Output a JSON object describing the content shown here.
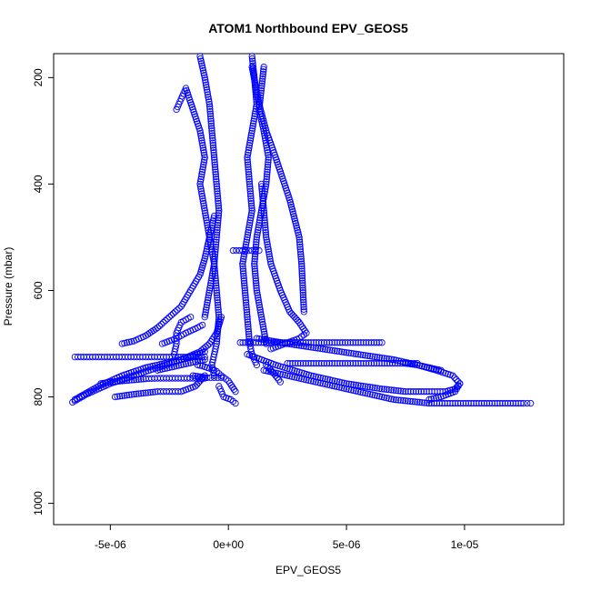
{
  "chart_data": {
    "type": "scatter",
    "title": "ATOM1 Northbound EPV_GEOS5",
    "xlabel": "EPV_GEOS5",
    "ylabel": "Pressure (mbar)",
    "xlim": [
      -7.4e-06,
      1.42e-05
    ],
    "ylim": [
      1040,
      155
    ],
    "y_reversed": true,
    "x_ticks": [
      -5e-06,
      0,
      5e-06,
      1e-05
    ],
    "x_tick_labels": [
      "-5e-06",
      "0e+00",
      "5e-06",
      "1e-05"
    ],
    "y_ticks": [
      200,
      400,
      600,
      800,
      1000
    ],
    "y_tick_labels": [
      "200",
      "400",
      "600",
      "800",
      "1000"
    ],
    "marker": "open-circle",
    "color": "#0000ff",
    "grid": false,
    "legend": "none",
    "series": [
      {
        "x": [
          -1.2e-06,
          -1e-06,
          -8e-07,
          -7e-07,
          -6e-07,
          -5e-07,
          -4e-07,
          -5e-07,
          -6e-07,
          -5e-07,
          -4e-07,
          -5e-07,
          -6e-07,
          -7e-07,
          -6e-07
        ],
        "y": [
          160,
          200,
          250,
          300,
          350,
          400,
          450,
          500,
          550,
          600,
          650,
          700,
          720,
          740,
          760
        ]
      },
      {
        "x": [
          1e-06,
          1.1e-06,
          1.2e-06,
          1e-06,
          8e-07,
          9e-07,
          1e-06,
          8e-07,
          6e-07,
          7e-07,
          8e-07,
          9e-07,
          1e-06,
          1.2e-06
        ],
        "y": [
          160,
          200,
          250,
          300,
          350,
          400,
          450,
          500,
          550,
          600,
          650,
          700,
          720,
          740
        ]
      },
      {
        "x": [
          -2.2e-06,
          -2e-06,
          -1.8e-06,
          -1.5e-06,
          -1.2e-06,
          -1e-06,
          -1.2e-06,
          -1e-06,
          -8e-07,
          -6e-07,
          -8e-07,
          -1e-06
        ],
        "y": [
          260,
          240,
          220,
          260,
          300,
          350,
          400,
          450,
          500,
          550,
          600,
          650
        ]
      },
      {
        "x": [
          1.5e-06,
          1.4e-06,
          1.3e-06,
          1.5e-06,
          1.7e-06,
          1.6e-06,
          1.4e-06,
          1.2e-06,
          1.1e-06,
          1.2e-06,
          1.4e-06,
          1.6e-06
        ],
        "y": [
          180,
          220,
          260,
          300,
          350,
          400,
          450,
          500,
          550,
          600,
          650,
          700
        ]
      },
      {
        "x": [
          -4.5e-06,
          -4e-06,
          -3.5e-06,
          -3e-06,
          -2.5e-06,
          -2e-06,
          -1.6e-06,
          -1.2e-06,
          -1e-06,
          -8e-07,
          -6e-07
        ],
        "y": [
          700,
          695,
          685,
          670,
          650,
          630,
          600,
          570,
          540,
          500,
          460
        ]
      },
      {
        "x": [
          -6.6e-06,
          -6e-06,
          -5e-06,
          -4e-06,
          -3e-06,
          -2e-06,
          -1.2e-06,
          -8e-07,
          -5e-07,
          -3e-07
        ],
        "y": [
          810,
          795,
          775,
          760,
          745,
          730,
          715,
          700,
          680,
          650
        ]
      },
      {
        "x": [
          -6.5e-06,
          -5.5e-06,
          -4.5e-06,
          -3.5e-06,
          -2.5e-06,
          -1.6e-06,
          -1e-06
        ],
        "y": [
          805,
          780,
          760,
          745,
          735,
          725,
          715
        ]
      },
      {
        "x": [
          -4.8e-06,
          -4e-06,
          -3e-06,
          -2.5e-06,
          -2e-06,
          -1.4e-06,
          -1e-06
        ],
        "y": [
          800,
          795,
          790,
          790,
          790,
          780,
          760
        ]
      },
      {
        "x": [
          -6.5e-06,
          -6e-06,
          -5.5e-06,
          -5e-06,
          -4.5e-06,
          -4e-06,
          -3.5e-06,
          -3e-06,
          -2.5e-06,
          -2e-06,
          -1.5e-06,
          -1e-06
        ],
        "y": [
          725,
          725,
          725,
          725,
          725,
          725,
          725,
          725,
          725,
          725,
          725,
          725
        ]
      },
      {
        "x": [
          -5.4e-06,
          -5e-06,
          -4.5e-06,
          -4e-06,
          -3.5e-06,
          -3e-06,
          -2.5e-06,
          -2e-06,
          -1.5e-06,
          -1e-06
        ],
        "y": [
          775,
          772,
          770,
          768,
          766,
          765,
          765,
          765,
          765,
          765
        ]
      },
      {
        "x": [
          5e-07,
          1.5e-06,
          2.5e-06,
          3.5e-06,
          4.5e-06,
          5.5e-06,
          6.5e-06
        ],
        "y": [
          698,
          698,
          698,
          698,
          698,
          698,
          698
        ]
      },
      {
        "x": [
          1.2e-06,
          2.5e-06,
          4e-06,
          5.5e-06,
          7e-06,
          8e-06,
          8.8e-06,
          9.5e-06,
          9.8e-06,
          9.6e-06,
          9e-06,
          8.5e-06
        ],
        "y": [
          690,
          700,
          710,
          720,
          730,
          740,
          750,
          760,
          775,
          790,
          800,
          805
        ]
      },
      {
        "x": [
          8e-07,
          2e-06,
          3.5e-06,
          5e-06,
          6.5e-06,
          7.5e-06,
          8.5e-06,
          9.2e-06,
          9.6e-06,
          9.8e-06
        ],
        "y": [
          720,
          740,
          760,
          775,
          785,
          790,
          790,
          790,
          785,
          775
        ]
      },
      {
        "x": [
          1.5e-06,
          2.5e-06,
          4e-06,
          5.5e-06,
          7e-06,
          8.5e-06
        ],
        "y": [
          750,
          760,
          775,
          790,
          805,
          812
        ]
      },
      {
        "x": [
          8.6e-06,
          9.5e-06,
          1.05e-05,
          1.15e-05,
          1.25e-05,
          1.28e-05
        ],
        "y": [
          812,
          812,
          812,
          812,
          812,
          812
        ]
      },
      {
        "x": [
          2.5e-06,
          3.5e-06,
          4.5e-06,
          5.5e-06,
          6.5e-06,
          7.5e-06,
          8e-06
        ],
        "y": [
          737,
          737,
          737,
          737,
          737,
          737,
          737
        ]
      },
      {
        "x": [
          7.5e-06,
          8e-06,
          8.5e-06,
          9e-06
        ],
        "y": [
          737,
          740,
          745,
          750
        ]
      },
      {
        "x": [
          1.4e-06,
          1.5e-06,
          1.6e-06,
          1.8e-06,
          2.2e-06,
          2.6e-06,
          3e-06,
          3.3e-06,
          3e-06,
          2.4e-06,
          1.8e-06
        ],
        "y": [
          400,
          450,
          500,
          550,
          600,
          640,
          660,
          680,
          690,
          700,
          710
        ]
      },
      {
        "x": [
          1e-06,
          1.3e-06,
          1.6e-06,
          2e-06,
          2.6e-06,
          3e-06,
          3.1e-06,
          3.2e-06
        ],
        "y": [
          180,
          250,
          300,
          350,
          430,
          500,
          550,
          640
        ]
      },
      {
        "x": [
          -1.3e-06,
          -1.1e-06,
          -9e-07,
          -7e-07,
          -5e-07,
          -4e-07,
          -3e-07,
          0.0,
          3e-07
        ],
        "y": [
          740,
          742,
          745,
          748,
          752,
          756,
          760,
          770,
          790
        ]
      },
      {
        "x": [
          -4e-07,
          -3e-07,
          -2e-07,
          1e-07,
          3e-07
        ],
        "y": [
          780,
          790,
          800,
          805,
          812
        ]
      },
      {
        "x": [
          -1.5e-06,
          -1.2e-06,
          -9e-07,
          -6e-07,
          -3e-07
        ],
        "y": [
          760,
          762,
          764,
          764,
          764
        ]
      },
      {
        "x": [
          -2.8e-06,
          -2.2e-06,
          -1.8e-06,
          -1.4e-06,
          -1.1e-06
        ],
        "y": [
          700,
          690,
          680,
          672,
          665
        ]
      },
      {
        "x": [
          -2.3e-06,
          -2.2e-06,
          -2.2e-06,
          -2e-06,
          -1.6e-06
        ],
        "y": [
          720,
          700,
          680,
          660,
          650
        ]
      },
      {
        "x": [
          1.6e-06,
          1.8e-06,
          2e-06,
          2.2e-06
        ],
        "y": [
          740,
          750,
          760,
          772
        ]
      },
      {
        "x": [
          2e-07,
          6e-07,
          1e-06,
          1.3e-06
        ],
        "y": [
          525,
          525,
          525,
          525
        ]
      },
      {
        "x": [
          -3e-06,
          -2.5e-06,
          -2e-06,
          -1.5e-06,
          -1e-06
        ],
        "y": [
          750,
          745,
          740,
          735,
          730
        ]
      }
    ]
  }
}
